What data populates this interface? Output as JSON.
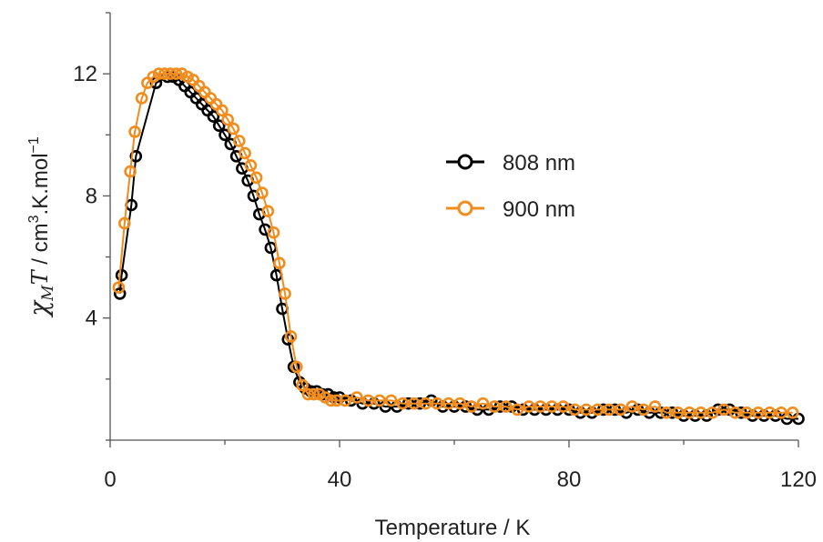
{
  "chart_data": {
    "type": "scatter",
    "xlabel": "Temperature / K",
    "ylabel": {
      "chi": "χ",
      "chi_sub": "M",
      "T": "T",
      "rest1": " / cm",
      "sup1": "3",
      "rest2": ".K.mol",
      "sup2": "−1"
    },
    "xlim": [
      0,
      120
    ],
    "ylim": [
      0,
      14
    ],
    "xticks": [
      0,
      40,
      80,
      120
    ],
    "yticks": [
      4,
      8,
      12
    ],
    "xticks_labels": [
      "0",
      "40",
      "80",
      "120"
    ],
    "yticks_labels": [
      "4",
      "8",
      "12"
    ],
    "legend_position": "center-right",
    "series": [
      {
        "name": "808 nm",
        "color": "#000000",
        "x": [
          1.7,
          2.0,
          3.7,
          4.5,
          8.0,
          10.0,
          11.0,
          12.0,
          13.0,
          14.0,
          15.0,
          16.0,
          17.0,
          18.0,
          19.0,
          20.0,
          21.0,
          22.0,
          23.0,
          24.0,
          25.0,
          26.0,
          27.0,
          28.0,
          29.0,
          30.0,
          31.0,
          32.0,
          33.0,
          34.0,
          35.0,
          36.0,
          37.0,
          38.0,
          39.0,
          40.0,
          42.0,
          44.0,
          46.0,
          48.0,
          50.0,
          52.0,
          54.0,
          56.0,
          58.0,
          60.0,
          62.0,
          64.0,
          66.0,
          68.0,
          70.0,
          72.0,
          74.0,
          76.0,
          78.0,
          80.0,
          82.0,
          84.0,
          86.0,
          88.0,
          90.0,
          92.0,
          94.0,
          96.0,
          98.0,
          100.0,
          102.0,
          104.0,
          106.0,
          108.0,
          110.0,
          112.0,
          114.0,
          116.0,
          118.0,
          120.0
        ],
        "y": [
          4.8,
          5.4,
          7.7,
          9.3,
          11.7,
          11.9,
          11.9,
          11.8,
          11.6,
          11.4,
          11.2,
          11.0,
          10.8,
          10.6,
          10.3,
          10.0,
          9.7,
          9.3,
          8.9,
          8.5,
          8.0,
          7.4,
          6.9,
          6.3,
          5.4,
          4.3,
          3.3,
          2.4,
          1.9,
          1.7,
          1.6,
          1.6,
          1.5,
          1.5,
          1.4,
          1.4,
          1.3,
          1.2,
          1.2,
          1.1,
          1.1,
          1.2,
          1.2,
          1.3,
          1.1,
          1.1,
          1.1,
          1.0,
          1.0,
          1.1,
          1.1,
          1.0,
          1.0,
          1.0,
          1.0,
          1.0,
          0.9,
          0.9,
          1.0,
          1.0,
          0.9,
          1.0,
          0.9,
          0.9,
          0.9,
          0.8,
          0.8,
          0.8,
          1.0,
          1.0,
          0.9,
          0.8,
          0.8,
          0.8,
          0.7,
          0.7
        ]
      },
      {
        "name": "900 nm",
        "color": "#F28C1C",
        "x": [
          1.5,
          2.5,
          3.5,
          4.3,
          5.5,
          6.5,
          7.5,
          8.5,
          9.5,
          10.5,
          11.5,
          12.5,
          13.5,
          14.5,
          15.5,
          16.5,
          17.5,
          18.5,
          19.5,
          20.5,
          21.5,
          22.5,
          23.5,
          24.5,
          25.5,
          26.5,
          27.5,
          28.5,
          29.5,
          30.5,
          31.5,
          32.5,
          33.5,
          34.5,
          35.5,
          36.5,
          37.5,
          38.5,
          39.5,
          41.0,
          43.0,
          45.0,
          47.0,
          49.0,
          51.0,
          53.0,
          55.0,
          57.0,
          59.0,
          61.0,
          63.0,
          65.0,
          67.0,
          69.0,
          71.0,
          73.0,
          75.0,
          77.0,
          79.0,
          81.0,
          83.0,
          85.0,
          87.0,
          89.0,
          91.0,
          93.0,
          95.0,
          97.0,
          99.0,
          101.0,
          103.0,
          105.0,
          107.0,
          109.0,
          111.0,
          113.0,
          115.0,
          117.0,
          119.0
        ],
        "y": [
          5.0,
          7.1,
          8.8,
          10.1,
          11.2,
          11.7,
          11.9,
          12.0,
          12.0,
          12.0,
          12.0,
          12.0,
          11.9,
          11.8,
          11.6,
          11.4,
          11.2,
          11.0,
          10.8,
          10.5,
          10.2,
          9.8,
          9.4,
          9.0,
          8.6,
          8.1,
          7.5,
          6.8,
          5.8,
          4.8,
          3.4,
          2.4,
          1.8,
          1.5,
          1.5,
          1.5,
          1.4,
          1.3,
          1.3,
          1.3,
          1.4,
          1.3,
          1.3,
          1.3,
          1.2,
          1.2,
          1.2,
          1.2,
          1.2,
          1.2,
          1.1,
          1.2,
          1.1,
          1.1,
          1.0,
          1.1,
          1.1,
          1.1,
          1.1,
          1.0,
          1.0,
          1.0,
          1.0,
          1.0,
          1.1,
          1.0,
          1.1,
          0.9,
          0.9,
          0.9,
          0.9,
          0.9,
          1.0,
          0.9,
          0.9,
          0.9,
          0.9,
          0.9,
          0.9
        ]
      }
    ]
  }
}
